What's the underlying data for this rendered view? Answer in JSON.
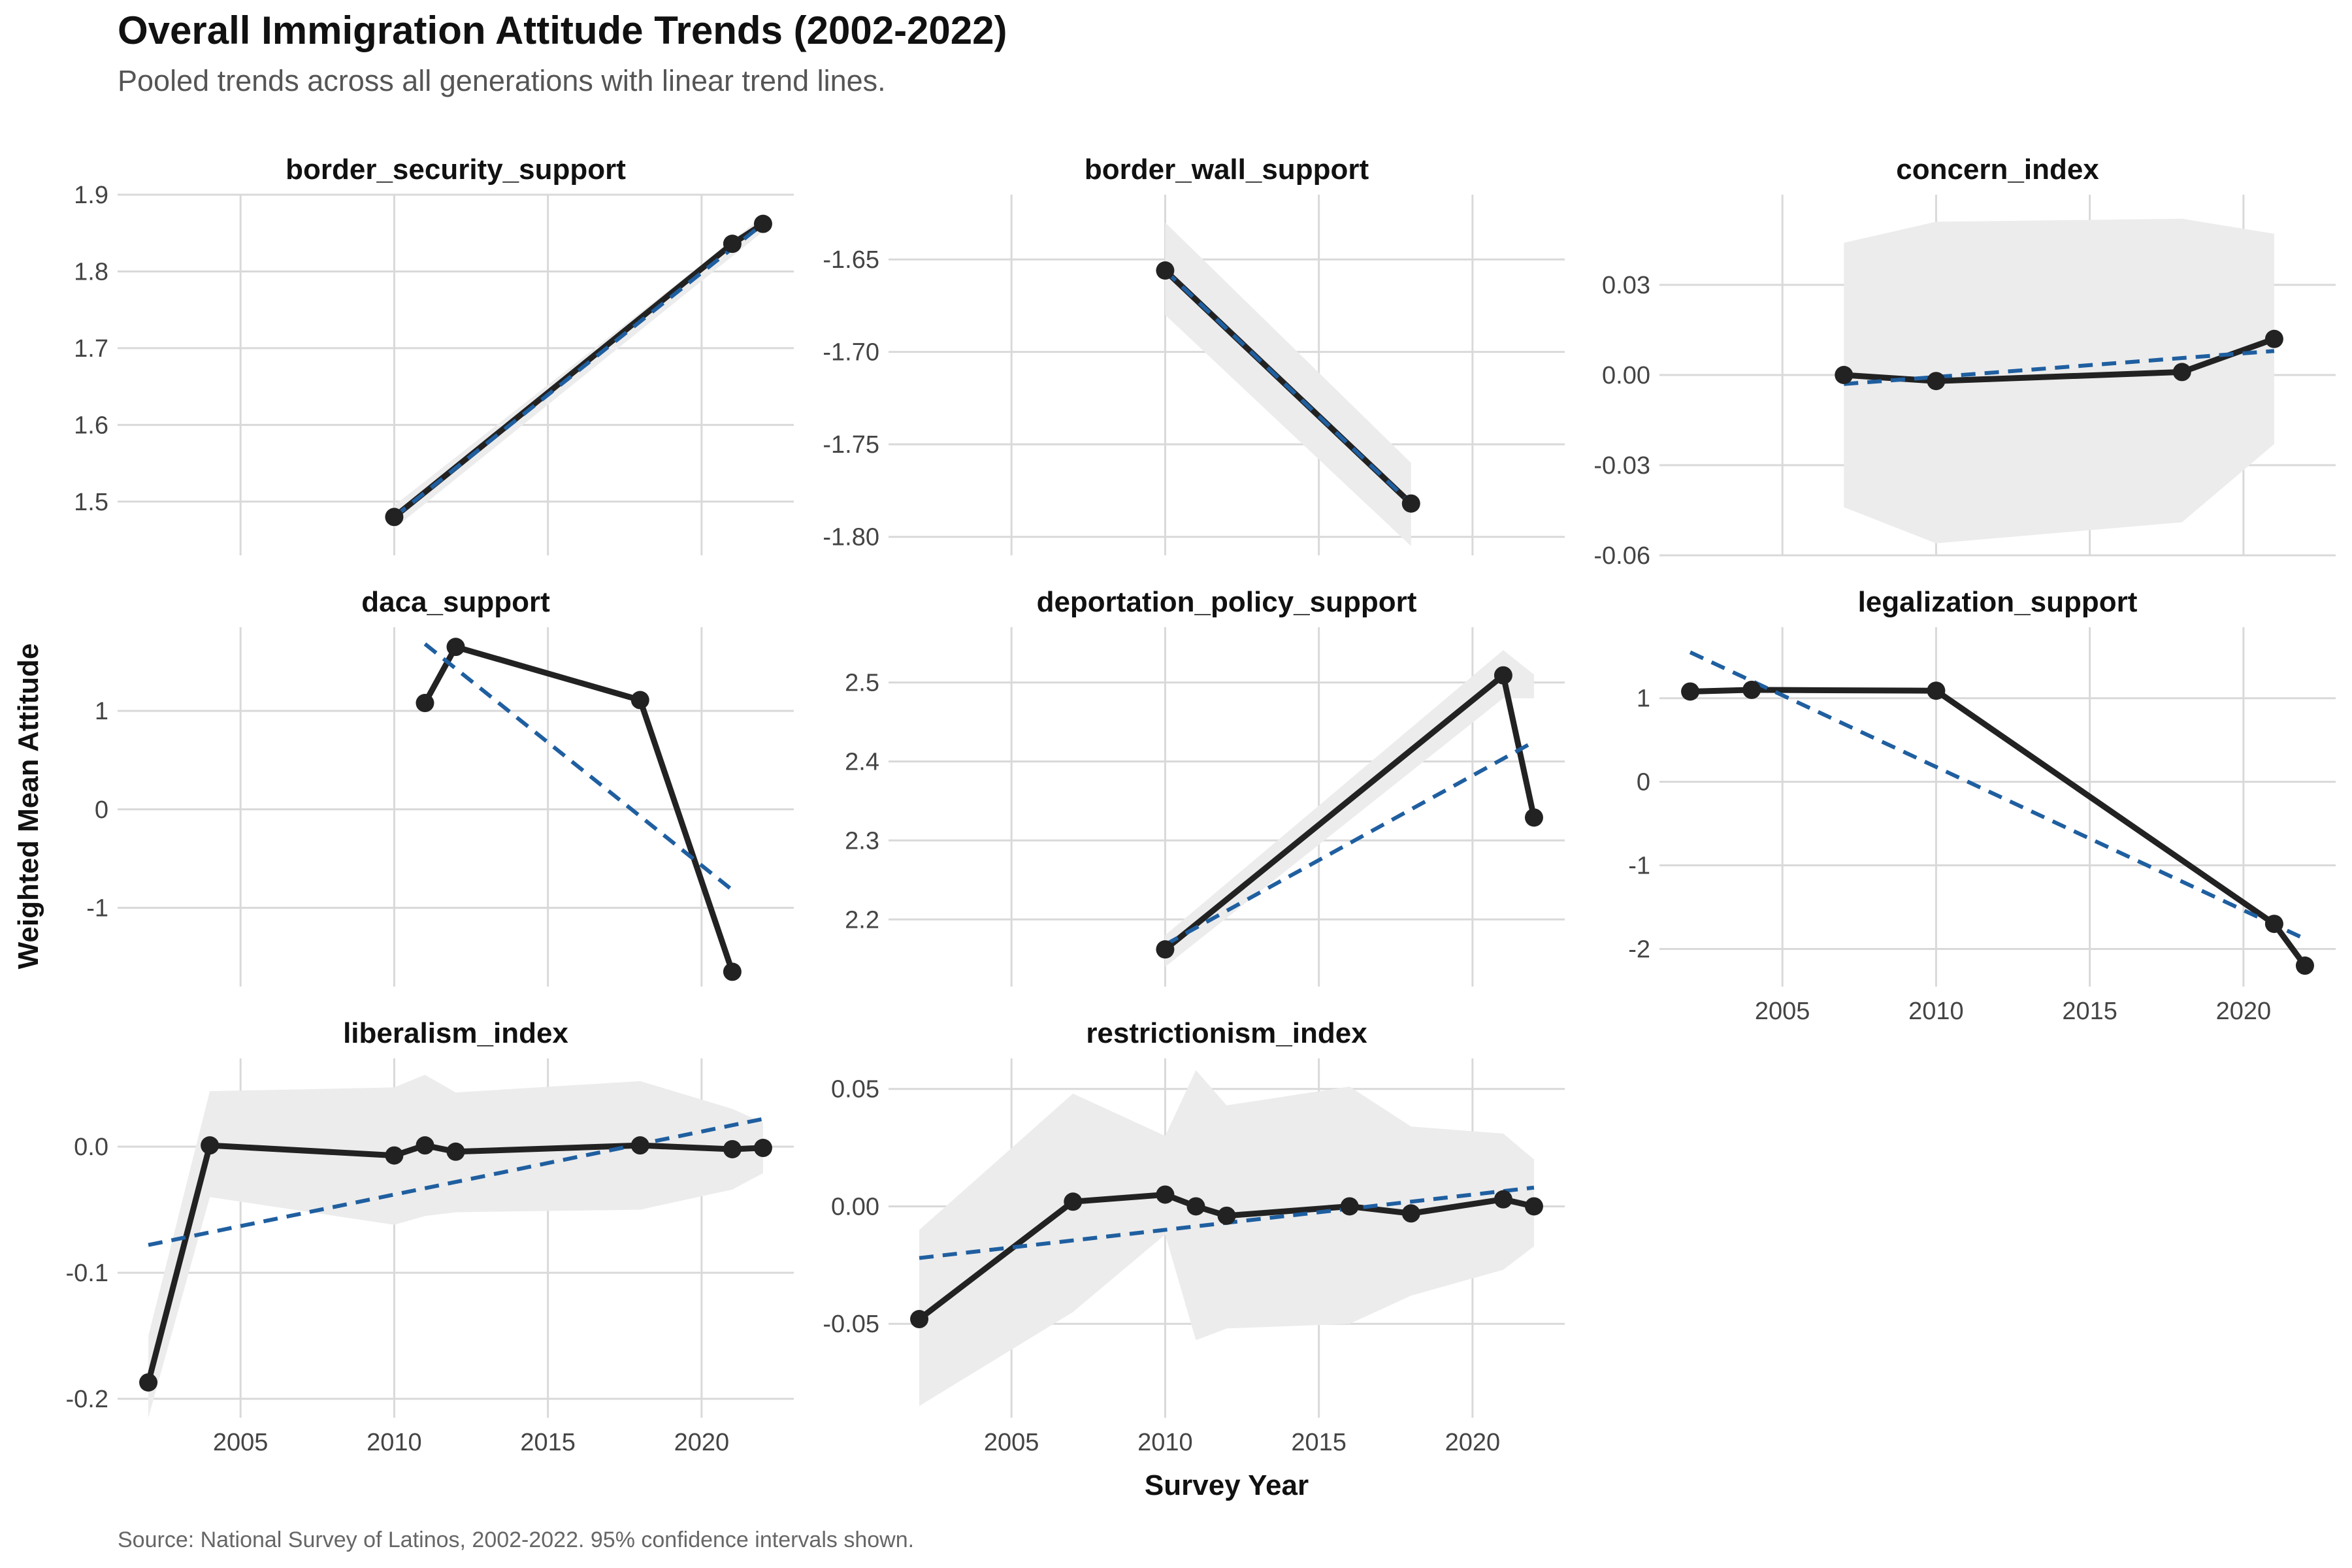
{
  "title": "Overall Immigration Attitude Trends (2002-2022)",
  "subtitle": "Pooled trends across all generations with linear trend lines.",
  "caption": "Source: National Survey of Latinos, 2002-2022. 95% confidence intervals shown.",
  "colors": {
    "line": "#222222",
    "trend": "#1f5fa0",
    "ribbon": "#ececec",
    "grid": "#d9d9d9"
  },
  "chart_data": {
    "type": "line",
    "xlabel": "Survey Year",
    "ylabel": "Weighted Mean Attitude",
    "xlim": [
      2001,
      2023
    ],
    "x_ticks": [
      "2005",
      "2010",
      "2015",
      "2020"
    ],
    "panels": [
      {
        "name": "border_security_support",
        "ylim": [
          1.43,
          1.9
        ],
        "y_ticks": [
          "1.9",
          "1.8",
          "1.7",
          "1.6",
          "1.5"
        ],
        "y_tick_values": [
          1.9,
          1.8,
          1.7,
          1.6,
          1.5
        ],
        "x": [
          2010,
          2021,
          2022
        ],
        "y": [
          1.48,
          1.836,
          1.862
        ],
        "trend": [
          [
            2010,
            1.48
          ],
          [
            2022,
            1.862
          ]
        ],
        "ci_upper": [
          [
            2010,
            1.495
          ],
          [
            2022,
            1.872
          ]
        ],
        "ci_lower": [
          [
            2010,
            1.465
          ],
          [
            2022,
            1.852
          ]
        ]
      },
      {
        "name": "border_wall_support",
        "ylim": [
          -1.81,
          -1.615
        ],
        "y_ticks": [
          "-1.65",
          "-1.70",
          "-1.75",
          "-1.80"
        ],
        "y_tick_values": [
          -1.65,
          -1.7,
          -1.75,
          -1.8
        ],
        "x": [
          2010,
          2018
        ],
        "y": [
          -1.656,
          -1.782
        ],
        "trend": [
          [
            2010,
            -1.656
          ],
          [
            2018,
            -1.782
          ]
        ],
        "ci_upper": [
          [
            2010,
            -1.63
          ],
          [
            2018,
            -1.76
          ]
        ],
        "ci_lower": [
          [
            2010,
            -1.68
          ],
          [
            2018,
            -1.805
          ]
        ]
      },
      {
        "name": "concern_index",
        "ylim": [
          -0.06,
          0.06
        ],
        "y_ticks": [
          "0.03",
          "0.00",
          "-0.03",
          "-0.06"
        ],
        "y_tick_values": [
          0.03,
          0.0,
          -0.03,
          -0.06
        ],
        "x": [
          2007,
          2010,
          2018,
          2021
        ],
        "y": [
          0.0,
          -0.002,
          0.001,
          0.012
        ],
        "trend": [
          [
            2007,
            -0.003
          ],
          [
            2021,
            0.008
          ]
        ],
        "ci_upper": [
          [
            2007,
            0.044
          ],
          [
            2010,
            0.051
          ],
          [
            2018,
            0.052
          ],
          [
            2021,
            0.047
          ]
        ],
        "ci_lower": [
          [
            2007,
            -0.044
          ],
          [
            2010,
            -0.056
          ],
          [
            2018,
            -0.049
          ],
          [
            2021,
            -0.023
          ]
        ]
      },
      {
        "name": "daca_support",
        "ylim": [
          -1.8,
          1.85
        ],
        "y_ticks": [
          "1",
          "0",
          "-1"
        ],
        "y_tick_values": [
          1,
          0,
          -1
        ],
        "x": [
          2011,
          2012,
          2018,
          2021
        ],
        "y": [
          1.08,
          1.65,
          1.11,
          -1.65
        ],
        "trend": [
          [
            2011,
            1.68
          ],
          [
            2021,
            -0.82
          ]
        ]
      },
      {
        "name": "deportation_policy_support",
        "ylim": [
          2.115,
          2.57
        ],
        "y_ticks": [
          "2.5",
          "2.4",
          "2.3",
          "2.2"
        ],
        "y_tick_values": [
          2.5,
          2.4,
          2.3,
          2.2
        ],
        "x": [
          2010,
          2021,
          2022
        ],
        "y": [
          2.162,
          2.509,
          2.329
        ],
        "trend": [
          [
            2010,
            2.168
          ],
          [
            2022,
            2.425
          ]
        ],
        "ci_upper": [
          [
            2010,
            2.18
          ],
          [
            2021,
            2.541
          ],
          [
            2022,
            2.51
          ]
        ],
        "ci_lower": [
          [
            2010,
            2.14
          ],
          [
            2021,
            2.48
          ],
          [
            2022,
            2.48
          ]
        ]
      },
      {
        "name": "legalization_support",
        "ylim": [
          -2.45,
          1.85
        ],
        "y_ticks": [
          "1",
          "0",
          "-1",
          "-2"
        ],
        "y_tick_values": [
          1,
          0,
          -1,
          -2
        ],
        "x": [
          2002,
          2004,
          2010,
          2021,
          2022
        ],
        "y": [
          1.08,
          1.1,
          1.09,
          -1.7,
          -2.2
        ],
        "trend": [
          [
            2002,
            1.55
          ],
          [
            2022,
            -1.88
          ]
        ]
      },
      {
        "name": "liberalism_index",
        "ylim": [
          -0.215,
          0.07
        ],
        "y_ticks": [
          "0.0",
          "-0.1",
          "-0.2"
        ],
        "y_tick_values": [
          0.0,
          -0.1,
          -0.2
        ],
        "x": [
          2002,
          2004,
          2010,
          2011,
          2012,
          2018,
          2021,
          2022
        ],
        "y": [
          -0.187,
          0.001,
          -0.007,
          0.001,
          -0.004,
          0.001,
          -0.002,
          -0.001
        ],
        "trend": [
          [
            2002,
            -0.078
          ],
          [
            2022,
            0.022
          ]
        ],
        "ci_upper": [
          [
            2002,
            -0.15
          ],
          [
            2004,
            0.044
          ],
          [
            2010,
            0.047
          ],
          [
            2011,
            0.057
          ],
          [
            2012,
            0.043
          ],
          [
            2018,
            0.052
          ],
          [
            2021,
            0.03
          ],
          [
            2022,
            0.019
          ]
        ],
        "ci_lower": [
          [
            2002,
            -0.215
          ],
          [
            2004,
            -0.04
          ],
          [
            2010,
            -0.062
          ],
          [
            2011,
            -0.055
          ],
          [
            2012,
            -0.052
          ],
          [
            2018,
            -0.05
          ],
          [
            2021,
            -0.034
          ],
          [
            2022,
            -0.021
          ]
        ]
      },
      {
        "name": "restrictionism_index",
        "ylim": [
          -0.09,
          0.063
        ],
        "y_ticks": [
          "0.05",
          "0.00",
          "-0.05"
        ],
        "y_tick_values": [
          0.05,
          0.0,
          -0.05
        ],
        "x": [
          2002,
          2007,
          2010,
          2011,
          2012,
          2016,
          2018,
          2021,
          2022
        ],
        "y": [
          -0.048,
          0.002,
          0.005,
          0.0,
          -0.004,
          0.0,
          -0.003,
          0.003,
          0.0
        ],
        "trend": [
          [
            2002,
            -0.022
          ],
          [
            2022,
            0.008
          ]
        ],
        "ci_upper": [
          [
            2002,
            -0.01
          ],
          [
            2007,
            0.048
          ],
          [
            2010,
            0.03
          ],
          [
            2011,
            0.058
          ],
          [
            2012,
            0.043
          ],
          [
            2016,
            0.051
          ],
          [
            2018,
            0.034
          ],
          [
            2021,
            0.031
          ],
          [
            2022,
            0.02
          ]
        ],
        "ci_lower": [
          [
            2002,
            -0.085
          ],
          [
            2007,
            -0.045
          ],
          [
            2010,
            -0.012
          ],
          [
            2011,
            -0.057
          ],
          [
            2012,
            -0.052
          ],
          [
            2016,
            -0.05
          ],
          [
            2018,
            -0.038
          ],
          [
            2021,
            -0.027
          ],
          [
            2022,
            -0.017
          ]
        ]
      }
    ]
  }
}
